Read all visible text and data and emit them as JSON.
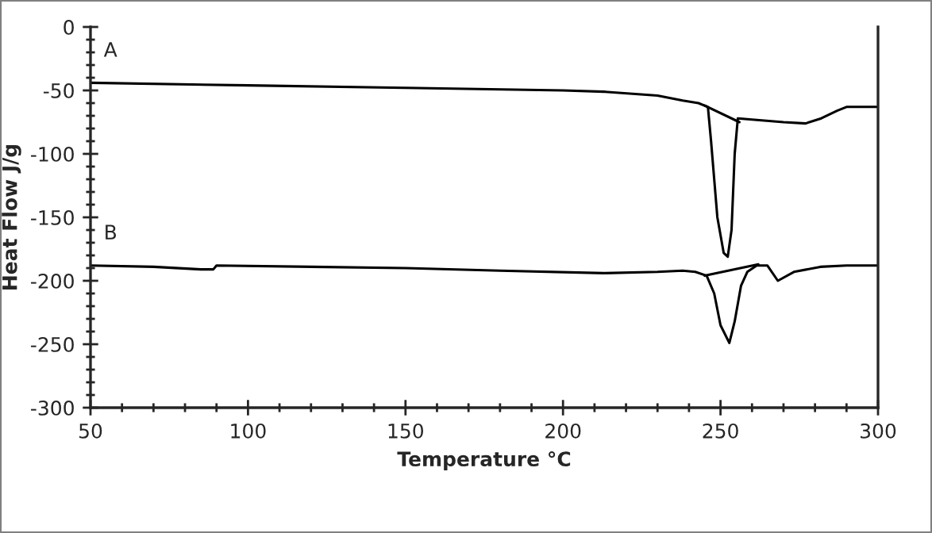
{
  "chart_data": {
    "type": "line",
    "xlabel": "Temperature °C",
    "ylabel": "Heat Flow J/g",
    "xlim": [
      50,
      300
    ],
    "ylim": [
      -300,
      0
    ],
    "xticks": [
      50,
      {
        "value": 60,
        "label": null
      },
      {
        "value": 70,
        "label": null
      },
      {
        "value": 80,
        "label": null
      },
      {
        "value": 90,
        "label": null
      },
      100,
      {
        "value": 110,
        "label": null
      },
      {
        "value": 120,
        "label": null
      },
      {
        "value": 130,
        "label": null
      },
      {
        "value": 140,
        "label": null
      },
      150,
      {
        "value": 160,
        "label": null
      },
      {
        "value": 170,
        "label": null
      },
      {
        "value": 180,
        "label": null
      },
      {
        "value": 190,
        "label": null
      },
      200,
      {
        "value": 210,
        "label": null
      },
      {
        "value": 220,
        "label": null
      },
      {
        "value": 230,
        "label": null
      },
      {
        "value": 240,
        "label": null
      },
      250,
      {
        "value": 260,
        "label": null
      },
      {
        "value": 270,
        "label": null
      },
      {
        "value": 280,
        "label": null
      },
      {
        "value": 290,
        "label": null
      },
      300
    ],
    "yticks": [
      -300,
      {
        "value": -290,
        "label": null
      },
      {
        "value": -280,
        "label": null
      },
      {
        "value": -270,
        "label": null
      },
      {
        "value": -260,
        "label": null
      },
      -250,
      {
        "value": -240,
        "label": null
      },
      {
        "value": -230,
        "label": null
      },
      {
        "value": -220,
        "label": null
      },
      {
        "value": -210,
        "label": null
      },
      -200,
      {
        "value": -190,
        "label": null
      },
      {
        "value": -180,
        "label": null
      },
      {
        "value": -170,
        "label": null
      },
      {
        "value": -160,
        "label": null
      },
      -150,
      {
        "value": -140,
        "label": null
      },
      {
        "value": -130,
        "label": null
      },
      {
        "value": -120,
        "label": null
      },
      {
        "value": -110,
        "label": null
      },
      -100,
      {
        "value": -90,
        "label": null
      },
      {
        "value": -80,
        "label": null
      },
      {
        "value": -70,
        "label": null
      },
      {
        "value": -60,
        "label": null
      },
      -50,
      {
        "value": -40,
        "label": null
      },
      {
        "value": -30,
        "label": null
      },
      {
        "value": -20,
        "label": null
      },
      {
        "value": -10,
        "label": null
      },
      0
    ],
    "grid": false,
    "legend": false,
    "marker": "none",
    "line_style": "solid",
    "series": [
      {
        "color": "#000000",
        "x": [
          50,
          100,
          150,
          200,
          213,
          230,
          238,
          243,
          246,
          247,
          249,
          251,
          252.3,
          253.5,
          254.5,
          255.5,
          260,
          270,
          277,
          282,
          287,
          290,
          300
        ],
        "values": [
          -44,
          -46,
          -48,
          -50,
          -51,
          -54,
          -58,
          -60,
          -63,
          -90,
          -150,
          -178,
          -181,
          -160,
          -100,
          -72,
          -73,
          -75,
          -76,
          -72,
          -66,
          -63,
          -63
        ]
      },
      {
        "color": "#000000",
        "x": [
          50,
          70,
          85,
          89,
          90,
          120,
          150,
          180,
          213,
          230,
          238,
          242,
          245.6,
          248,
          250,
          252.8,
          254.5,
          256.5,
          258.5,
          261.5,
          264.9,
          268.2,
          273.3,
          281.7,
          290,
          300
        ],
        "values": [
          -188,
          -189,
          -191,
          -191,
          -188,
          -189,
          -190,
          -192,
          -194,
          -193,
          -192,
          -193,
          -196,
          -210,
          -235,
          -249,
          -232,
          -204,
          -193,
          -188,
          -188,
          -200,
          -193,
          -189,
          -188,
          -188
        ]
      },
      {
        "type": "line",
        "color": "#000000",
        "x": [
          245,
          256
        ],
        "values": [
          -62,
          -75
        ]
      },
      {
        "type": "line",
        "color": "#000000",
        "x": [
          245,
          262
        ],
        "values": [
          -196,
          -187
        ]
      }
    ],
    "annotations": [
      "A",
      "B"
    ]
  }
}
